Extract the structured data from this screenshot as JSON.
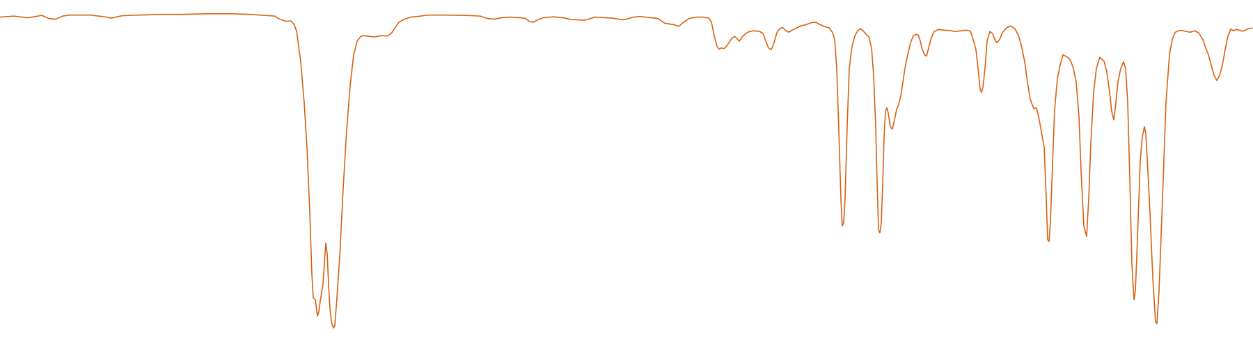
{
  "chart_data": {
    "type": "line",
    "title": "",
    "xlabel": "",
    "ylabel": "",
    "grid": false,
    "legend": "none",
    "ylim": [
      0,
      100
    ],
    "series": [
      {
        "color": "#d95f0e",
        "points": [
          [
            0,
            95
          ],
          [
            20,
            95.3
          ],
          [
            40,
            94.8
          ],
          [
            60,
            95.5
          ],
          [
            70,
            94.6
          ],
          [
            80,
            94.4
          ],
          [
            90,
            95.3
          ],
          [
            100,
            95.6
          ],
          [
            130,
            95.6
          ],
          [
            150,
            95.1
          ],
          [
            160,
            94.7
          ],
          [
            175,
            95.4
          ],
          [
            200,
            95.6
          ],
          [
            230,
            95.8
          ],
          [
            260,
            95.8
          ],
          [
            300,
            96
          ],
          [
            330,
            96
          ],
          [
            360,
            95.8
          ],
          [
            380,
            95.5
          ],
          [
            395,
            95.3
          ],
          [
            400,
            94.6
          ],
          [
            410,
            93.8
          ],
          [
            418,
            93.9
          ],
          [
            422,
            93
          ],
          [
            426,
            91
          ],
          [
            432,
            82
          ],
          [
            437,
            70
          ],
          [
            441,
            57
          ],
          [
            445,
            38
          ],
          [
            448,
            20
          ],
          [
            450,
            13
          ],
          [
            453,
            12.5
          ],
          [
            456,
            7.7
          ],
          [
            458,
            9
          ],
          [
            460,
            12
          ],
          [
            462,
            14.5
          ],
          [
            464,
            17
          ],
          [
            466,
            23
          ],
          [
            468,
            29
          ],
          [
            470,
            26
          ],
          [
            472,
            17
          ],
          [
            474,
            10
          ],
          [
            476,
            6
          ],
          [
            479,
            4.2
          ],
          [
            481,
            5
          ],
          [
            484,
            13
          ],
          [
            488,
            25
          ],
          [
            493,
            45
          ],
          [
            498,
            62
          ],
          [
            503,
            75
          ],
          [
            508,
            84
          ],
          [
            513,
            88
          ],
          [
            518,
            89.3
          ],
          [
            522,
            89.6
          ],
          [
            530,
            89.4
          ],
          [
            538,
            89.2
          ],
          [
            548,
            89.6
          ],
          [
            556,
            89.5
          ],
          [
            562,
            90.2
          ],
          [
            568,
            92
          ],
          [
            573,
            93.5
          ],
          [
            580,
            94.3
          ],
          [
            590,
            95
          ],
          [
            600,
            95.2
          ],
          [
            615,
            95.6
          ],
          [
            640,
            95.6
          ],
          [
            670,
            95.5
          ],
          [
            690,
            95.3
          ],
          [
            700,
            94.6
          ],
          [
            710,
            94.4
          ],
          [
            720,
            94.8
          ],
          [
            732,
            95
          ],
          [
            748,
            94.8
          ],
          [
            755,
            94.6
          ],
          [
            760,
            93.8
          ],
          [
            766,
            93.5
          ],
          [
            772,
            94.2
          ],
          [
            780,
            94.8
          ],
          [
            795,
            95.1
          ],
          [
            805,
            94.9
          ],
          [
            812,
            94.7
          ],
          [
            820,
            94.3
          ],
          [
            830,
            94.2
          ],
          [
            840,
            94.1
          ],
          [
            855,
            95
          ],
          [
            870,
            94.8
          ],
          [
            880,
            94.7
          ],
          [
            895,
            94.2
          ],
          [
            900,
            94.4
          ],
          [
            910,
            95
          ],
          [
            920,
            95.2
          ],
          [
            935,
            94.8
          ],
          [
            945,
            94.6
          ],
          [
            955,
            93.2
          ],
          [
            968,
            92.8
          ],
          [
            975,
            92.3
          ],
          [
            982,
            93.5
          ],
          [
            990,
            94.6
          ],
          [
            1000,
            95
          ],
          [
            1010,
            95
          ],
          [
            1018,
            94.7
          ],
          [
            1022,
            93.6
          ],
          [
            1026,
            89.5
          ],
          [
            1030,
            86.5
          ],
          [
            1033,
            85.6
          ],
          [
            1036,
            86
          ],
          [
            1040,
            85.8
          ],
          [
            1044,
            86.6
          ],
          [
            1048,
            87.8
          ],
          [
            1052,
            89
          ],
          [
            1056,
            89.3
          ],
          [
            1062,
            88
          ],
          [
            1068,
            89.6
          ],
          [
            1074,
            90.6
          ],
          [
            1082,
            91
          ],
          [
            1090,
            90.9
          ],
          [
            1096,
            90.3
          ],
          [
            1100,
            88
          ],
          [
            1104,
            86
          ],
          [
            1108,
            85.5
          ],
          [
            1112,
            87.5
          ],
          [
            1116,
            90.5
          ],
          [
            1120,
            91.6
          ],
          [
            1124,
            92
          ],
          [
            1128,
            91.2
          ],
          [
            1133,
            90.6
          ],
          [
            1138,
            91.2
          ],
          [
            1145,
            91.9
          ],
          [
            1150,
            92.4
          ],
          [
            1158,
            92.8
          ],
          [
            1166,
            93.4
          ],
          [
            1172,
            93.5
          ],
          [
            1178,
            92.8
          ],
          [
            1185,
            92.2
          ],
          [
            1191,
            91.9
          ],
          [
            1196,
            90.5
          ],
          [
            1199,
            88.5
          ],
          [
            1202,
            80
          ],
          [
            1205,
            62
          ],
          [
            1208,
            42
          ],
          [
            1210,
            34
          ],
          [
            1212,
            35
          ],
          [
            1214,
            42
          ],
          [
            1217,
            63
          ],
          [
            1220,
            80
          ],
          [
            1224,
            86.5
          ],
          [
            1228,
            89.5
          ],
          [
            1232,
            91
          ],
          [
            1236,
            91.6
          ],
          [
            1240,
            91
          ],
          [
            1244,
            90
          ],
          [
            1248,
            89.3
          ],
          [
            1252,
            86
          ],
          [
            1255,
            78
          ],
          [
            1258,
            63
          ],
          [
            1260,
            47
          ],
          [
            1262,
            33
          ],
          [
            1264,
            32
          ],
          [
            1266,
            35
          ],
          [
            1268,
            46
          ],
          [
            1270,
            60
          ],
          [
            1272,
            67.5
          ],
          [
            1274,
            68.5
          ],
          [
            1276,
            67
          ],
          [
            1279,
            63
          ],
          [
            1282,
            62.3
          ],
          [
            1285,
            65
          ],
          [
            1288,
            68
          ],
          [
            1291,
            69.5
          ],
          [
            1294,
            72
          ],
          [
            1297,
            76
          ],
          [
            1300,
            80
          ],
          [
            1304,
            84
          ],
          [
            1308,
            87.5
          ],
          [
            1312,
            89.5
          ],
          [
            1316,
            90
          ],
          [
            1319,
            89.8
          ],
          [
            1322,
            88
          ],
          [
            1325,
            85.5
          ],
          [
            1328,
            84
          ],
          [
            1331,
            83.6
          ],
          [
            1334,
            86
          ],
          [
            1338,
            89
          ],
          [
            1342,
            90.8
          ],
          [
            1348,
            91.4
          ],
          [
            1356,
            91.2
          ],
          [
            1364,
            91.1
          ],
          [
            1372,
            90.8
          ],
          [
            1380,
            91
          ],
          [
            1388,
            91.2
          ],
          [
            1394,
            90.9
          ],
          [
            1398,
            88.5
          ],
          [
            1402,
            85.5
          ],
          [
            1405,
            80
          ],
          [
            1408,
            74
          ],
          [
            1410,
            73
          ],
          [
            1412,
            74.5
          ],
          [
            1415,
            80
          ],
          [
            1418,
            88
          ],
          [
            1422,
            90.8
          ],
          [
            1426,
            90.2
          ],
          [
            1429,
            88.5
          ],
          [
            1432,
            87.5
          ],
          [
            1436,
            88.5
          ],
          [
            1440,
            90.5
          ],
          [
            1446,
            91.9
          ],
          [
            1452,
            92.4
          ],
          [
            1458,
            91.6
          ],
          [
            1463,
            89.6
          ],
          [
            1467,
            87
          ],
          [
            1472,
            82
          ],
          [
            1476,
            76
          ],
          [
            1480,
            71
          ],
          [
            1485,
            68.3
          ],
          [
            1489,
            68.5
          ],
          [
            1493,
            65
          ],
          [
            1496,
            61.5
          ],
          [
            1500,
            57
          ],
          [
            1503,
            42
          ],
          [
            1505,
            30
          ],
          [
            1507,
            29.5
          ],
          [
            1509,
            35
          ],
          [
            1512,
            52
          ],
          [
            1515,
            68
          ],
          [
            1519,
            77
          ],
          [
            1523,
            81
          ],
          [
            1527,
            84
          ],
          [
            1530,
            83.7
          ],
          [
            1534,
            83.2
          ],
          [
            1538,
            82.3
          ],
          [
            1542,
            80
          ],
          [
            1546,
            76
          ],
          [
            1550,
            66
          ],
          [
            1553,
            50
          ],
          [
            1557,
            34
          ],
          [
            1561,
            31
          ],
          [
            1564,
            42
          ],
          [
            1567,
            58
          ],
          [
            1571,
            73
          ],
          [
            1575,
            80
          ],
          [
            1580,
            83.3
          ],
          [
            1586,
            82.1
          ],
          [
            1590,
            79
          ],
          [
            1594,
            73
          ],
          [
            1597,
            67.5
          ],
          [
            1600,
            65
          ],
          [
            1603,
            70
          ],
          [
            1606,
            76
          ],
          [
            1610,
            80
          ],
          [
            1614,
            82
          ],
          [
            1617,
            80
          ],
          [
            1620,
            70
          ],
          [
            1623,
            48
          ],
          [
            1626,
            23
          ],
          [
            1629,
            12.5
          ],
          [
            1631,
            15
          ],
          [
            1634,
            30
          ],
          [
            1638,
            53
          ],
          [
            1641,
            60
          ],
          [
            1644,
            63
          ],
          [
            1646,
            61
          ],
          [
            1649,
            50
          ],
          [
            1652,
            38
          ],
          [
            1656,
            19
          ],
          [
            1660,
            6
          ],
          [
            1662,
            5.5
          ],
          [
            1665,
            15
          ],
          [
            1670,
            42
          ],
          [
            1675,
            70
          ],
          [
            1680,
            84
          ],
          [
            1684,
            88.5
          ],
          [
            1688,
            90.5
          ],
          [
            1692,
            91
          ],
          [
            1698,
            91.1
          ],
          [
            1704,
            90.8
          ],
          [
            1710,
            90.6
          ],
          [
            1716,
            91
          ],
          [
            1722,
            90.4
          ],
          [
            1728,
            88.5
          ],
          [
            1732,
            86
          ],
          [
            1736,
            84
          ],
          [
            1740,
            81
          ],
          [
            1744,
            78
          ],
          [
            1748,
            76.5
          ],
          [
            1752,
            78
          ],
          [
            1756,
            81
          ],
          [
            1760,
            85.5
          ],
          [
            1764,
            89.5
          ],
          [
            1768,
            91.5
          ],
          [
            1772,
            91
          ],
          [
            1776,
            91.4
          ],
          [
            1780,
            91.2
          ],
          [
            1784,
            90.9
          ],
          [
            1788,
            91.1
          ],
          [
            1793,
            91.6
          ],
          [
            1799,
            91.8
          ]
        ]
      }
    ]
  }
}
